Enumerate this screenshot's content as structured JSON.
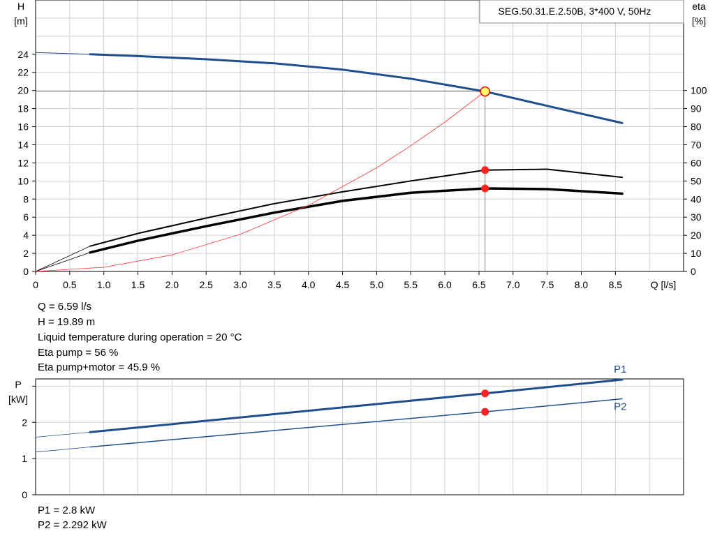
{
  "chart_data": [
    {
      "type": "line",
      "title": "SEG.50.31.E.2.50B, 3*400 V, 50Hz",
      "xlabel": "Q [l/s]",
      "ylabel_name": "H",
      "ylabel_unit": "[m]",
      "y2label_name": "eta",
      "y2label_unit": "[%]",
      "xlim": [
        0,
        9.5
      ],
      "ylim": [
        0,
        30
      ],
      "y2lim": [
        0,
        150
      ],
      "grid": true,
      "x_ticks": [
        0,
        0.5,
        1.0,
        1.5,
        2.0,
        2.5,
        3.0,
        3.5,
        4.0,
        4.5,
        5.0,
        5.5,
        6.0,
        6.5,
        7.0,
        7.5,
        8.0,
        8.5
      ],
      "x_tick_labels": [
        "0",
        "0.5",
        "1.0",
        "1.5",
        "2.0",
        "2.5",
        "3.0",
        "3.5",
        "4.0",
        "4.5",
        "5.0",
        "5.5",
        "6.0",
        "6.5",
        "7.0",
        "7.5",
        "8.0",
        "8.5"
      ],
      "y_ticks": [
        0,
        2,
        4,
        6,
        8,
        10,
        12,
        14,
        16,
        18,
        20,
        22,
        24
      ],
      "y_tick_labels": [
        "0",
        "2",
        "4",
        "6",
        "8",
        "10",
        "12",
        "14",
        "16",
        "18",
        "20",
        "22",
        "24"
      ],
      "y2_ticks": [
        0,
        10,
        20,
        30,
        40,
        50,
        60,
        70,
        80,
        90,
        100
      ],
      "y2_tick_labels": [
        "0",
        "10",
        "20",
        "30",
        "40",
        "50",
        "60",
        "70",
        "80",
        "90",
        "100"
      ],
      "series": [
        {
          "key": "head",
          "axis": "y",
          "color": "#1f4e8c",
          "width": 3,
          "dash": false,
          "x": [
            0.8,
            1.5,
            2.5,
            3.5,
            4.5,
            5.5,
            6.59,
            7.5,
            8.6
          ],
          "y": [
            24.0,
            23.8,
            23.45,
            23.0,
            22.3,
            21.3,
            19.89,
            18.3,
            16.4
          ]
        },
        {
          "key": "head-ext",
          "axis": "y",
          "color": "#1f4e8c",
          "width": 1,
          "dash": false,
          "x": [
            0,
            0.8
          ],
          "y": [
            24.2,
            24.0
          ]
        },
        {
          "key": "eta-pump",
          "axis": "y2",
          "color": "#000000",
          "width": 2,
          "dash": false,
          "x": [
            0.8,
            1.5,
            2.5,
            3.5,
            4.5,
            5.5,
            6.59,
            7.5,
            8.6
          ],
          "y": [
            14,
            21,
            29.5,
            37.5,
            44,
            50,
            56,
            56.5,
            52
          ]
        },
        {
          "key": "eta-pump-motor",
          "axis": "y2",
          "color": "#000000",
          "width": 3.5,
          "dash": false,
          "x": [
            0.8,
            1.5,
            2.5,
            3.5,
            4.5,
            5.5,
            6.59,
            7.5,
            8.6
          ],
          "y": [
            10.5,
            17,
            25,
            32.5,
            39,
            43.5,
            45.9,
            45.5,
            43
          ]
        },
        {
          "key": "eta-ext",
          "axis": "y2",
          "color": "#000000",
          "width": 0.8,
          "dash": false,
          "x": [
            0,
            0.8
          ],
          "y": [
            0,
            14
          ]
        },
        {
          "key": "eta-ext2",
          "axis": "y2",
          "color": "#000000",
          "width": 0.8,
          "dash": false,
          "x": [
            0,
            0.8
          ],
          "y": [
            0,
            10.5
          ]
        },
        {
          "key": "system-curve",
          "axis": "y",
          "color": "#ff3030",
          "width": 0.8,
          "dash": false,
          "x": [
            0,
            1,
            2,
            3,
            4,
            5,
            5.5,
            6,
            6.59
          ],
          "y": [
            0,
            0.46,
            1.83,
            4.1,
            7.3,
            11.45,
            13.9,
            16.5,
            19.89
          ]
        }
      ],
      "duty_point": {
        "x": 6.59,
        "y": 19.89,
        "fill": "#ffff66",
        "stroke": "#e00000"
      },
      "markers": [
        {
          "axis": "y2",
          "x": 6.59,
          "y": 56,
          "color": "#ff2020"
        },
        {
          "axis": "y2",
          "x": 6.59,
          "y": 45.9,
          "color": "#ff2020"
        }
      ]
    },
    {
      "type": "line",
      "ylabel_name": "P",
      "ylabel_unit": "[kW]",
      "xlim": [
        0,
        9.5
      ],
      "ylim": [
        0,
        3.2
      ],
      "grid": true,
      "y_ticks": [
        0,
        1,
        2
      ],
      "y_tick_labels": [
        "0",
        "1",
        "2"
      ],
      "series": [
        {
          "name": "P1",
          "key": "p1",
          "color": "#1f4e8c",
          "width": 3,
          "x": [
            0.8,
            6.59,
            8.6
          ],
          "y": [
            1.73,
            2.8,
            3.18
          ]
        },
        {
          "name": "P2",
          "key": "p2",
          "color": "#1f4e8c",
          "width": 1.5,
          "x": [
            0.8,
            6.59,
            8.6
          ],
          "y": [
            1.32,
            2.292,
            2.65
          ]
        },
        {
          "key": "p1-ext",
          "color": "#1f4e8c",
          "width": 0.8,
          "x": [
            0,
            0.8
          ],
          "y": [
            1.59,
            1.73
          ]
        },
        {
          "key": "p2-ext",
          "color": "#1f4e8c",
          "width": 0.8,
          "x": [
            0,
            0.8
          ],
          "y": [
            1.18,
            1.32
          ]
        }
      ],
      "markers": [
        {
          "x": 6.59,
          "y": 2.8,
          "color": "#ff2020"
        },
        {
          "x": 6.59,
          "y": 2.292,
          "color": "#ff2020"
        }
      ]
    }
  ],
  "info": {
    "q": "Q = 6.59 l/s",
    "h": "H = 19.89 m",
    "temp": "Liquid temperature during operation = 20 °C",
    "eta_pump": "Eta pump = 56 %",
    "eta_pump_motor": "Eta pump+motor = 45.9 %"
  },
  "power_info": {
    "p1": "P1 = 2.8 kW",
    "p2": "P2 = 2.292 kW"
  }
}
